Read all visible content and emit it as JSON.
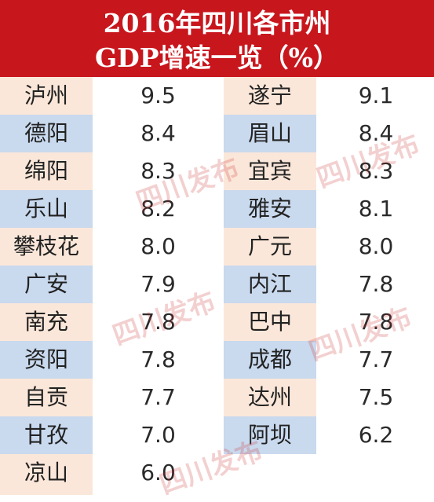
{
  "header": {
    "title_line1": "2016年四川各市州",
    "title_line2": "GDP增速一览（%）"
  },
  "rows": [
    {
      "left_name": "泸州",
      "left_value": "9.5",
      "right_name": "遂宁",
      "right_value": "9.1"
    },
    {
      "left_name": "德阳",
      "left_value": "8.4",
      "right_name": "眉山",
      "right_value": "8.4"
    },
    {
      "left_name": "绵阳",
      "left_value": "8.3",
      "right_name": "宜宾",
      "right_value": "8.3"
    },
    {
      "left_name": "乐山",
      "left_value": "8.2",
      "right_name": "雅安",
      "right_value": "8.1"
    },
    {
      "left_name": "攀枝花",
      "left_value": "8.0",
      "right_name": "广元",
      "right_value": "8.0"
    },
    {
      "left_name": "广安",
      "left_value": "7.9",
      "right_name": "内江",
      "right_value": "7.8"
    },
    {
      "left_name": "南充",
      "left_value": "7.8",
      "right_name": "巴中",
      "right_value": "7.8"
    },
    {
      "left_name": "资阳",
      "left_value": "7.8",
      "right_name": "成都",
      "right_value": "7.7"
    },
    {
      "left_name": "自贡",
      "left_value": "7.7",
      "right_name": "达州",
      "right_value": "7.5"
    },
    {
      "left_name": "甘孜",
      "left_value": "7.0",
      "right_name": "阿坝",
      "right_value": "6.2"
    },
    {
      "left_name": "凉山",
      "left_value": "6.0",
      "right_name": "",
      "right_value": ""
    }
  ],
  "watermark": "四川发布",
  "colors": {
    "header_bg": "#c8161d",
    "row_peach": "#fbe7d9",
    "row_blue": "#c9d9ee"
  }
}
